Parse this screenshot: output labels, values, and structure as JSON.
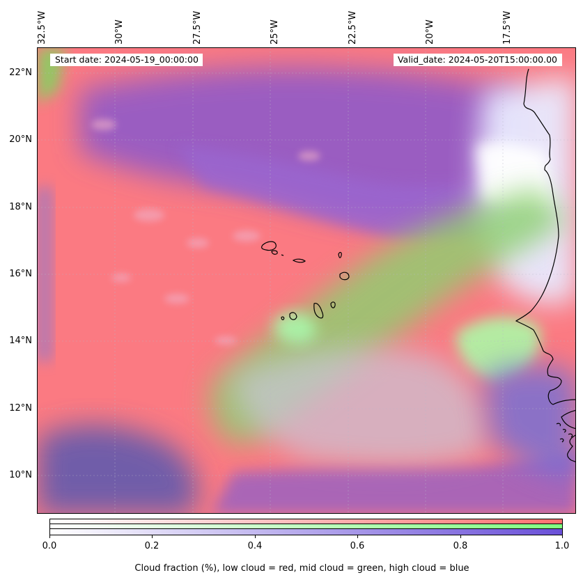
{
  "map": {
    "start_date": "Start date: 2024-05-19_00:00:00",
    "valid_date": "Valid_date: 2024-05-20T15:00:00.00",
    "lon_labels": [
      "32.5°W",
      "30°W",
      "27.5°W",
      "25°W",
      "22.5°W",
      "20°W",
      "17.5°W"
    ],
    "lat_labels": [
      "22°N",
      "20°N",
      "18°N",
      "16°N",
      "14°N",
      "12°N",
      "10°N"
    ],
    "colors": {
      "low_cloud": "#ff7070",
      "mid_cloud": "#80ff80",
      "high_cloud": "#6a50d8",
      "coastline": "#000000"
    }
  },
  "colorbar": {
    "ticks": [
      "0.0",
      "0.2",
      "0.4",
      "0.6",
      "0.8",
      "1.0"
    ],
    "label": "Cloud fraction (%), low cloud = red, mid cloud = green, high cloud = blue"
  }
}
